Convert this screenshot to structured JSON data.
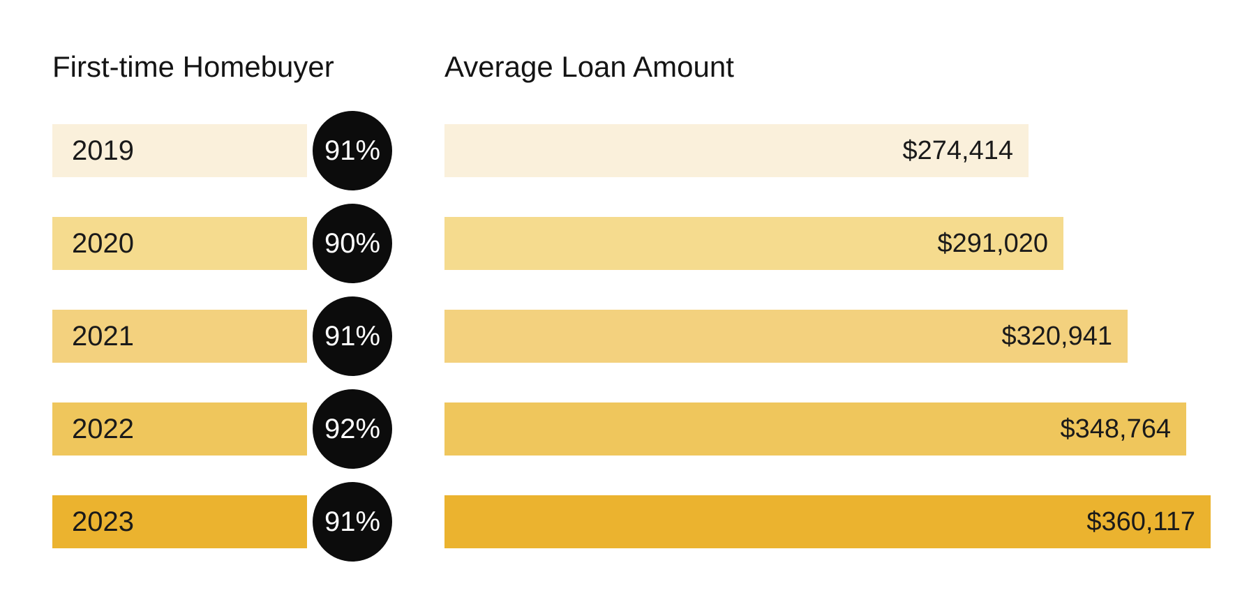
{
  "header": {
    "left_title": "First-time Homebuyer",
    "right_title": "Average Loan Amount"
  },
  "colors": {
    "circle": "#0c0c0c",
    "circle_text": "#ffffff",
    "text": "#1a1a1a",
    "background": "#ffffff"
  },
  "chart_data": {
    "type": "bar",
    "orientation": "horizontal",
    "title": "",
    "categories": [
      "2019",
      "2020",
      "2021",
      "2022",
      "2023"
    ],
    "series": [
      {
        "name": "First-time Homebuyer (%)",
        "values": [
          91,
          90,
          91,
          92,
          91
        ]
      },
      {
        "name": "Average Loan Amount ($)",
        "values": [
          274414,
          291020,
          320941,
          348764,
          360117
        ]
      }
    ],
    "grid": false,
    "legend_position": "none",
    "max_amount": 360117,
    "rows": [
      {
        "year": "2019",
        "pct_label": "91%",
        "amount_label": "$274,414",
        "amount": 274414,
        "color": "#FAF0DB"
      },
      {
        "year": "2020",
        "pct_label": "90%",
        "amount_label": "$291,020",
        "amount": 291020,
        "color": "#F5DB8E"
      },
      {
        "year": "2021",
        "pct_label": "91%",
        "amount_label": "$320,941",
        "amount": 320941,
        "color": "#F3D17E"
      },
      {
        "year": "2022",
        "pct_label": "92%",
        "amount_label": "$348,764",
        "amount": 348764,
        "color": "#EFC65C"
      },
      {
        "year": "2023",
        "pct_label": "91%",
        "amount_label": "$360,117",
        "amount": 360117,
        "color": "#EBB32F"
      }
    ]
  }
}
